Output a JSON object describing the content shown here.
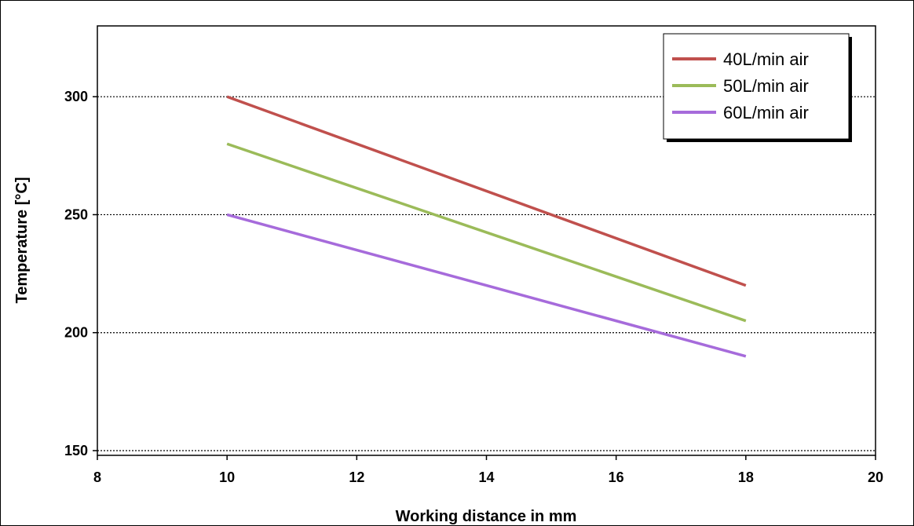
{
  "chart_data": {
    "type": "line",
    "xlabel": "Working distance in mm",
    "ylabel": "Temperature [°C]",
    "xlim": [
      8,
      20
    ],
    "ylim": [
      148,
      330
    ],
    "x_ticks": [
      8,
      10,
      12,
      14,
      16,
      18,
      20
    ],
    "y_ticks": [
      150,
      200,
      250,
      300
    ],
    "grid": "horizontal-dotted",
    "legend_position": "top-right",
    "series": [
      {
        "name": "40L/min air",
        "color": "#c0504d",
        "x": [
          10,
          18
        ],
        "y": [
          300,
          220
        ]
      },
      {
        "name": "50L/min air",
        "color": "#9bbb59",
        "x": [
          10,
          18
        ],
        "y": [
          280,
          205
        ]
      },
      {
        "name": "60L/min air",
        "color": "#a66bdb",
        "x": [
          10,
          18
        ],
        "y": [
          250,
          190
        ]
      }
    ]
  }
}
